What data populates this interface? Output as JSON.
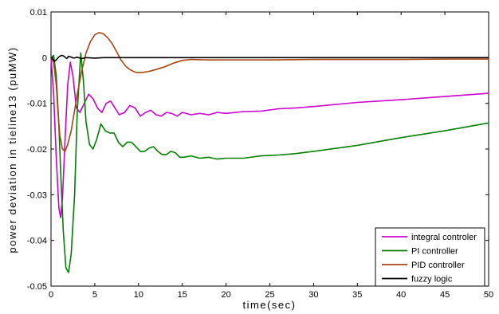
{
  "chart_data": {
    "type": "line",
    "title": "",
    "xlabel": "time(sec)",
    "ylabel": "power deviation in tieline13 (puMW)",
    "xlim": [
      0,
      50
    ],
    "ylim": [
      -0.05,
      0.01
    ],
    "xticks": [
      0,
      5,
      10,
      15,
      20,
      25,
      30,
      35,
      40,
      45,
      50
    ],
    "yticks": [
      0.01,
      0,
      -0.01,
      -0.02,
      -0.03,
      -0.04,
      -0.05
    ],
    "xtick_labels": [
      "0",
      "5",
      "10",
      "15",
      "20",
      "25",
      "30",
      "35",
      "40",
      "45",
      "50"
    ],
    "ytick_labels": [
      "0.01",
      "0",
      "-0.01",
      "-0.02",
      "-0.03",
      "-0.04",
      "-0.05"
    ],
    "grid": false,
    "legend_position": "bottom-right",
    "series": [
      {
        "name": "integral controler",
        "color": "#cc00cc",
        "x": [
          0,
          0.3,
          0.6,
          0.9,
          1.1,
          1.3,
          1.6,
          1.9,
          2.2,
          2.5,
          2.9,
          3.3,
          3.8,
          4.3,
          4.8,
          5.3,
          5.8,
          6.3,
          6.8,
          7.3,
          7.8,
          8.4,
          9.0,
          9.6,
          10.2,
          10.8,
          11.4,
          12.0,
          12.6,
          13.2,
          13.8,
          14.4,
          15.0,
          16.0,
          17.0,
          18.0,
          19.0,
          20.0,
          22.0,
          24.0,
          26.0,
          28.0,
          30.0,
          35.0,
          40.0,
          45.0,
          50.0
        ],
        "y": [
          0,
          -0.008,
          -0.022,
          -0.033,
          -0.035,
          -0.031,
          -0.018,
          -0.006,
          -0.001,
          -0.004,
          -0.011,
          -0.012,
          -0.01,
          -0.008,
          -0.009,
          -0.011,
          -0.012,
          -0.01,
          -0.0095,
          -0.011,
          -0.0125,
          -0.012,
          -0.0105,
          -0.011,
          -0.0128,
          -0.012,
          -0.0115,
          -0.0125,
          -0.0128,
          -0.012,
          -0.0122,
          -0.0128,
          -0.012,
          -0.0125,
          -0.0122,
          -0.0125,
          -0.012,
          -0.0122,
          -0.0118,
          -0.0117,
          -0.0112,
          -0.011,
          -0.0107,
          -0.0098,
          -0.0092,
          -0.0085,
          -0.0078
        ]
      },
      {
        "name": "PI controller",
        "color": "#008000",
        "x": [
          0,
          0.3,
          0.6,
          0.9,
          1.1,
          1.4,
          1.7,
          2.0,
          2.3,
          2.7,
          3.0,
          3.4,
          3.7,
          4.0,
          4.4,
          4.8,
          5.2,
          5.7,
          6.2,
          6.7,
          7.2,
          7.7,
          8.2,
          8.7,
          9.2,
          9.7,
          10.2,
          10.7,
          11.2,
          11.7,
          12.2,
          12.7,
          13.2,
          13.7,
          14.2,
          14.7,
          15.2,
          16.0,
          17.0,
          18.0,
          19.0,
          20.0,
          22.0,
          24.0,
          26.0,
          28.0,
          30.0,
          35.0,
          40.0,
          45.0,
          50.0
        ],
        "y": [
          0,
          0.0005,
          -0.004,
          -0.015,
          -0.025,
          -0.038,
          -0.046,
          -0.047,
          -0.043,
          -0.03,
          -0.012,
          0.001,
          -0.005,
          -0.014,
          -0.019,
          -0.02,
          -0.018,
          -0.0145,
          -0.016,
          -0.0165,
          -0.0165,
          -0.0185,
          -0.0195,
          -0.0185,
          -0.0185,
          -0.0195,
          -0.0205,
          -0.0205,
          -0.0198,
          -0.0195,
          -0.0205,
          -0.0212,
          -0.0212,
          -0.0205,
          -0.0208,
          -0.0218,
          -0.0218,
          -0.0215,
          -0.022,
          -0.0218,
          -0.0222,
          -0.022,
          -0.022,
          -0.0215,
          -0.0213,
          -0.021,
          -0.0205,
          -0.0192,
          -0.0175,
          -0.016,
          -0.0143
        ]
      },
      {
        "name": "PID controller",
        "color": "#aa4411",
        "x": [
          0,
          0.3,
          0.6,
          0.8,
          1.0,
          1.3,
          1.6,
          1.9,
          2.3,
          2.7,
          3.1,
          3.5,
          4.0,
          4.5,
          5.0,
          5.5,
          6.0,
          6.5,
          7.0,
          7.5,
          8.0,
          8.5,
          9.0,
          9.5,
          10.0,
          10.5,
          11.0,
          12.0,
          13.0,
          14.0,
          15.0,
          16.0,
          18.0,
          20.0,
          25.0,
          30.0,
          35.0,
          40.0,
          45.0,
          50.0
        ],
        "y": [
          0,
          -0.001,
          -0.006,
          -0.012,
          -0.017,
          -0.02,
          -0.0205,
          -0.019,
          -0.016,
          -0.0115,
          -0.007,
          -0.003,
          0.001,
          0.0035,
          0.005,
          0.0055,
          0.0052,
          0.0043,
          0.003,
          0.0013,
          -0.0005,
          -0.0018,
          -0.0026,
          -0.0031,
          -0.0033,
          -0.0032,
          -0.0031,
          -0.0026,
          -0.002,
          -0.0012,
          -0.0006,
          -0.0004,
          -0.0005,
          -0.0005,
          -0.0005,
          -0.0004,
          -0.0004,
          -0.0004,
          -0.0003,
          -0.0003
        ]
      },
      {
        "name": "fuzzy logic",
        "color": "#000000",
        "x": [
          0,
          0.2,
          0.4,
          0.6,
          0.8,
          1.0,
          1.2,
          1.4,
          1.6,
          1.8,
          2.0,
          2.3,
          2.6,
          3.0,
          3.5,
          4.0,
          5.0,
          6.0,
          8.0,
          10.0,
          15.0,
          20.0,
          30.0,
          40.0,
          50.0
        ],
        "y": [
          0,
          -0.0003,
          -0.0008,
          -0.0005,
          0,
          0.0003,
          0.0005,
          0.0004,
          0.0001,
          -0.0002,
          0.0003,
          0.0001,
          -0.0001,
          0.0001,
          -0.0002,
          0,
          -0.0001,
          0,
          0,
          0,
          0,
          0,
          0,
          0,
          0
        ]
      }
    ]
  }
}
